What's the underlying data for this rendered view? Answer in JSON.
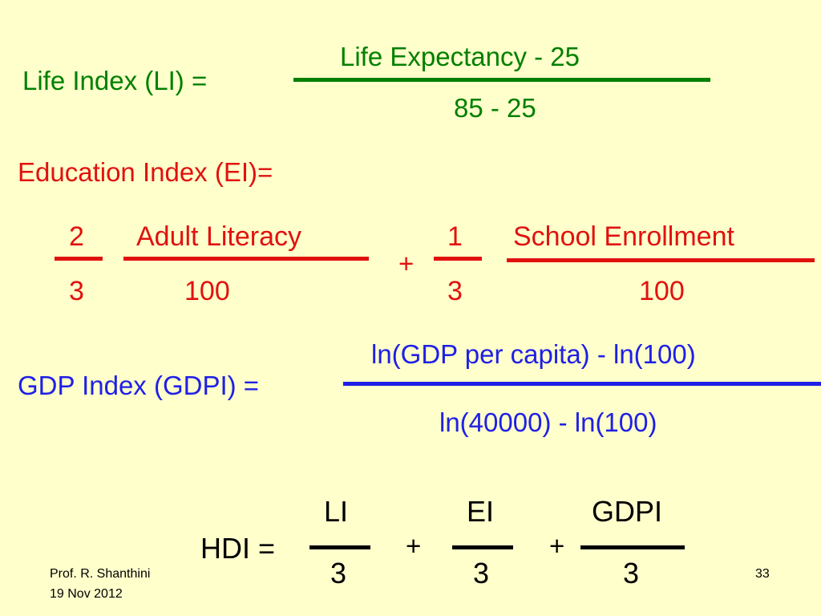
{
  "life_index": {
    "label": "Life Index (LI) =",
    "numerator": "Life Expectancy - 25",
    "denominator": "85 - 25"
  },
  "education_index": {
    "label": "Education Index  (EI)=",
    "term1": {
      "weight_num": "2",
      "weight_den": "3",
      "numerator": "Adult Literacy",
      "denominator": "100"
    },
    "plus": "+",
    "term2": {
      "weight_num": "1",
      "weight_den": "3",
      "numerator": "School Enrollment",
      "denominator": "100"
    }
  },
  "gdp_index": {
    "label": "GDP Index (GDPI) =",
    "numerator": "ln(GDP per capita) - ln(100)",
    "denominator": "ln(40000) - ln(100)"
  },
  "hdi": {
    "label": "HDI =",
    "terms": [
      {
        "numerator": "LI",
        "denominator": "3"
      },
      {
        "numerator": "EI",
        "denominator": "3"
      },
      {
        "numerator": "GDPI",
        "denominator": "3"
      }
    ],
    "plus": "+"
  },
  "footer": {
    "author": "Prof. R. Shanthini",
    "date": "19 Nov 2012",
    "page_number": "33"
  },
  "colors": {
    "background": "#ffffcc",
    "life_index": "#008000",
    "education_index": "#e0120f",
    "gdp_index": "#1f1fe6",
    "hdi": "#000000"
  }
}
